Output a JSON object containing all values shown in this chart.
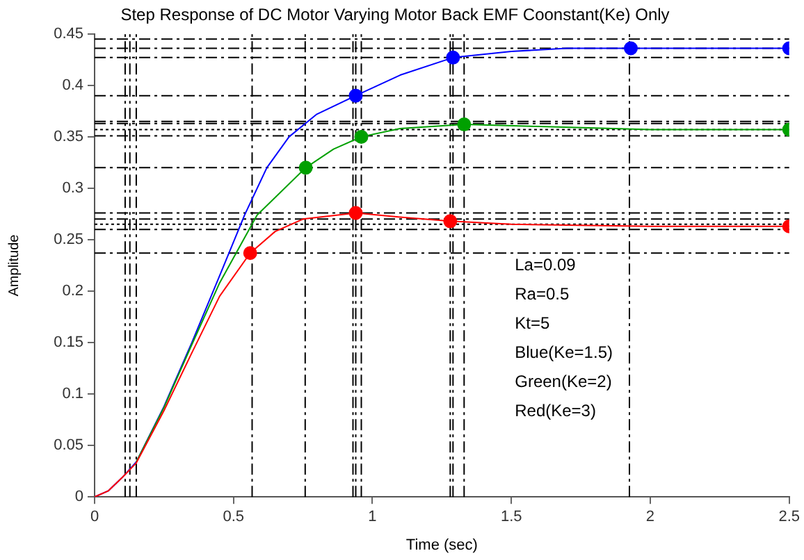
{
  "chart_data": {
    "type": "line",
    "title": "Step Response of DC Motor Varying Motor Back EMF Coonstant(Ke) Only",
    "xlabel": "Time (sec)",
    "ylabel": "Amplitude",
    "xlim": [
      0,
      2.5
    ],
    "xticks": [
      0,
      0.5,
      1,
      1.5,
      2,
      2.5
    ],
    "ylim": [
      0,
      0.45
    ],
    "yticks": [
      0,
      0.05,
      0.1,
      0.15,
      0.2,
      0.25,
      0.3,
      0.35,
      0.4,
      0.45
    ],
    "grid": false,
    "legend": false,
    "series": [
      {
        "color": "#0000ff",
        "marker": "none",
        "x": [
          0,
          0.05,
          0.1,
          0.15,
          0.25,
          0.35,
          0.45,
          0.54,
          0.62,
          0.7,
          0.8,
          0.94,
          1.1,
          1.29,
          1.5,
          1.7,
          1.93,
          2.2,
          2.5
        ],
        "values": [
          0,
          0.006,
          0.019,
          0.034,
          0.088,
          0.15,
          0.215,
          0.274,
          0.32,
          0.35,
          0.372,
          0.39,
          0.41,
          0.427,
          0.433,
          0.436,
          0.436,
          0.436,
          0.436
        ]
      },
      {
        "color": "#00a000",
        "marker": "none",
        "x": [
          0.15,
          0.25,
          0.35,
          0.45,
          0.585,
          0.76,
          0.86,
          0.96,
          1.1,
          1.33,
          1.6,
          2.0,
          2.5
        ],
        "values": [
          0.034,
          0.087,
          0.148,
          0.208,
          0.274,
          0.32,
          0.338,
          0.35,
          0.358,
          0.362,
          0.36,
          0.357,
          0.357
        ]
      },
      {
        "color": "#ff0000",
        "marker": "none",
        "x": [
          0,
          0.05,
          0.1,
          0.15,
          0.25,
          0.35,
          0.45,
          0.56,
          0.65,
          0.75,
          0.94,
          1.1,
          1.28,
          1.5,
          2.0,
          2.5
        ],
        "values": [
          0,
          0.006,
          0.019,
          0.033,
          0.084,
          0.14,
          0.195,
          0.237,
          0.258,
          0.27,
          0.276,
          0.272,
          0.268,
          0.265,
          0.263,
          0.263
        ]
      },
      {
        "type": "scatter",
        "color": "#0000ff",
        "marker": "circle",
        "x": [
          0.94,
          1.29,
          1.93,
          2.5
        ],
        "values": [
          0.39,
          0.427,
          0.436,
          0.436
        ]
      },
      {
        "type": "scatter",
        "color": "#00a000",
        "marker": "circle",
        "x": [
          0.76,
          0.96,
          1.33,
          2.5
        ],
        "values": [
          0.32,
          0.35,
          0.362,
          0.357
        ]
      },
      {
        "type": "scatter",
        "color": "#ff0000",
        "marker": "circle",
        "x": [
          0.56,
          0.94,
          1.28,
          2.5
        ],
        "values": [
          0.237,
          0.276,
          0.268,
          0.263
        ]
      }
    ],
    "ref_lines": [
      {
        "axis": "y",
        "value": 0.445,
        "color": "#000000",
        "line_style": "dashed"
      },
      {
        "axis": "y",
        "value": 0.436,
        "color": "#000000",
        "line_style": "dashed"
      },
      {
        "axis": "y",
        "value": 0.427,
        "color": "#000000",
        "line_style": "dashed"
      },
      {
        "axis": "y",
        "value": 0.39,
        "color": "#000000",
        "line_style": "dashed"
      },
      {
        "axis": "y",
        "value": 0.365,
        "color": "#000000",
        "line_style": "dashed"
      },
      {
        "axis": "y",
        "value": 0.363,
        "color": "#000000",
        "line_style": "dashed"
      },
      {
        "axis": "y",
        "value": 0.357,
        "color": "#000000",
        "line_style": "dotted"
      },
      {
        "axis": "y",
        "value": 0.351,
        "color": "#000000",
        "line_style": "dashed"
      },
      {
        "axis": "y",
        "value": 0.32,
        "color": "#000000",
        "line_style": "dashed"
      },
      {
        "axis": "y",
        "value": 0.276,
        "color": "#000000",
        "line_style": "dashed"
      },
      {
        "axis": "y",
        "value": 0.27,
        "color": "#000000",
        "line_style": "dashed"
      },
      {
        "axis": "y",
        "value": 0.265,
        "color": "#000000",
        "line_style": "dotted"
      },
      {
        "axis": "y",
        "value": 0.26,
        "color": "#000000",
        "line_style": "dashed"
      },
      {
        "axis": "y",
        "value": 0.237,
        "color": "#000000",
        "line_style": "dashed"
      },
      {
        "axis": "x",
        "value": 0.11,
        "color": "#000000",
        "line_style": "dashed"
      },
      {
        "axis": "x",
        "value": 0.127,
        "color": "#000000",
        "line_style": "dashed"
      },
      {
        "axis": "x",
        "value": 0.15,
        "color": "#000000",
        "line_style": "dashed"
      },
      {
        "axis": "x",
        "value": 0.567,
        "color": "#000000",
        "line_style": "dashed"
      },
      {
        "axis": "x",
        "value": 0.758,
        "color": "#000000",
        "line_style": "dashed"
      },
      {
        "axis": "x",
        "value": 0.93,
        "color": "#000000",
        "line_style": "dashed"
      },
      {
        "axis": "x",
        "value": 0.94,
        "color": "#000000",
        "line_style": "dashed"
      },
      {
        "axis": "x",
        "value": 0.96,
        "color": "#000000",
        "line_style": "dashed"
      },
      {
        "axis": "x",
        "value": 1.28,
        "color": "#000000",
        "line_style": "dashed"
      },
      {
        "axis": "x",
        "value": 1.29,
        "color": "#000000",
        "line_style": "dashed"
      },
      {
        "axis": "x",
        "value": 1.33,
        "color": "#000000",
        "line_style": "dashed"
      },
      {
        "axis": "x",
        "value": 1.925,
        "color": "#000000",
        "line_style": "dashed"
      }
    ],
    "annotations": [
      "La=0.09",
      "Ra=0.5",
      "Kt=5",
      "Blue(Ke=1.5)",
      "Green(Ke=2)",
      "Red(Ke=3)"
    ]
  }
}
